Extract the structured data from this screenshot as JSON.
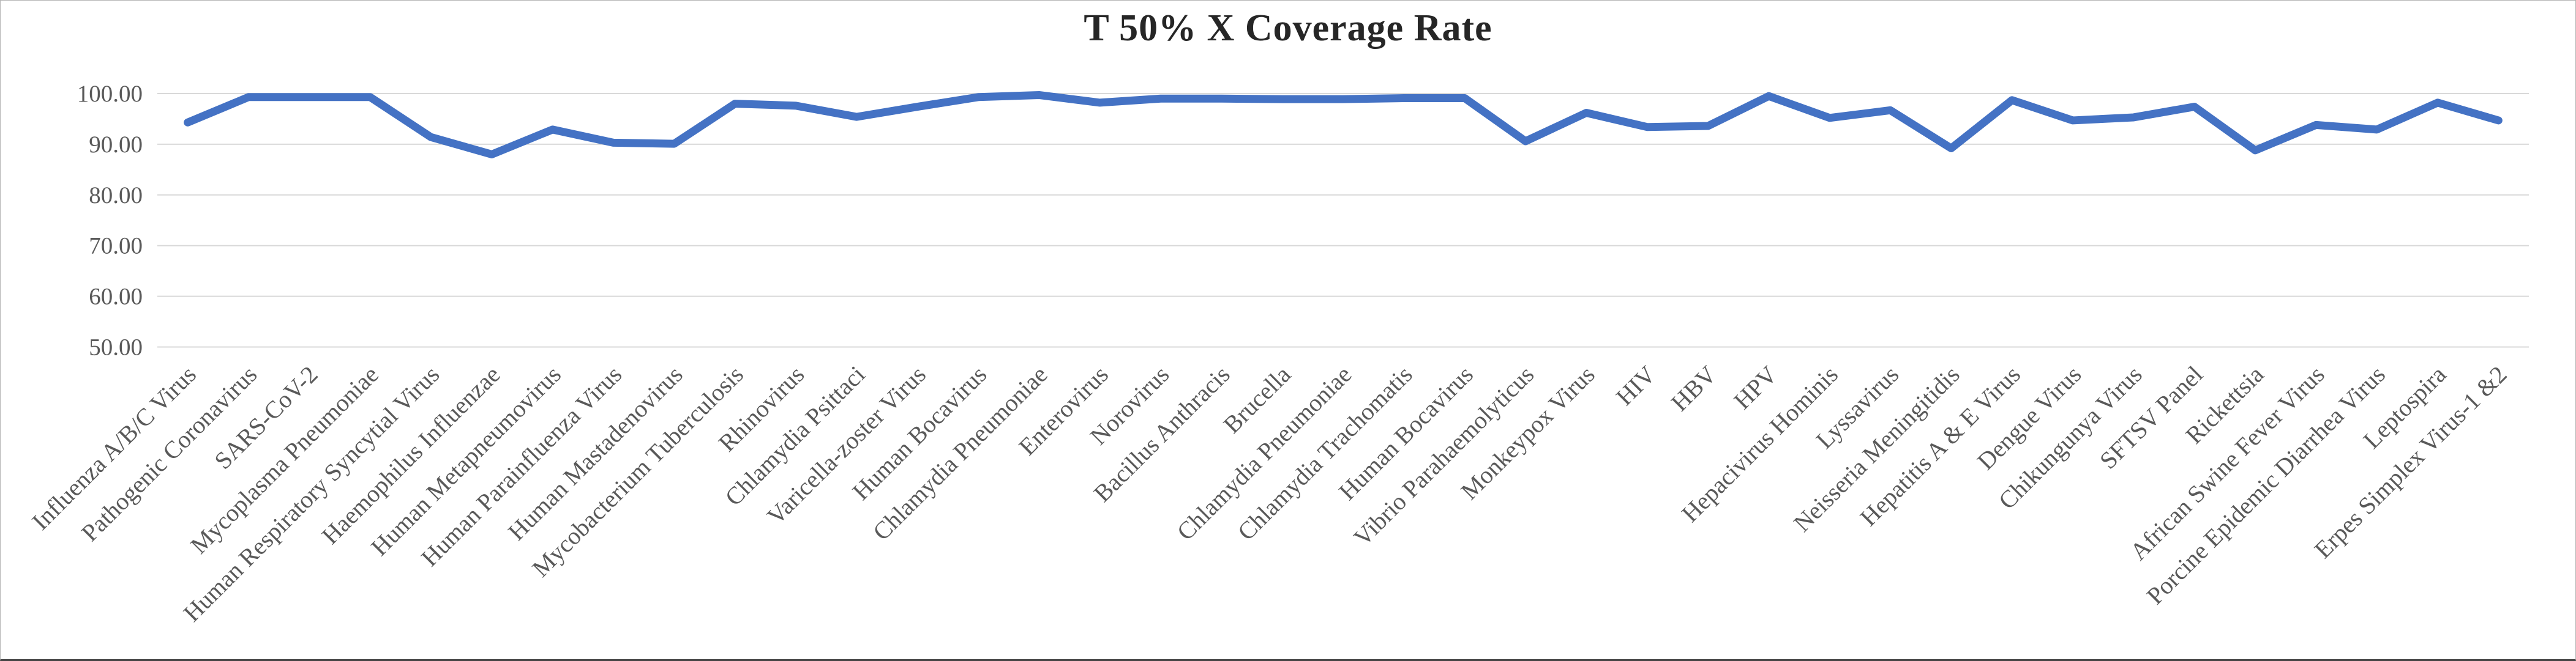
{
  "chart_data": {
    "type": "line",
    "title": "T 50% X Coverage Rate",
    "categories": [
      "Influenza A/B/C Virus",
      "Pathogenic Coronavirus",
      "SARS-CoV-2",
      "Mycoplasma Pneumoniae",
      "Human Respiratory Syncytial Virus",
      "Haemophilus Influenzae",
      "Human Metapneumovirus",
      "Human Parainfluenza Virus",
      "Human Mastadenovirus",
      "Mycobacterium Tuberculosis",
      "Rhinovirus",
      "Chlamydia Psittaci",
      "Varicella-zoster Virus",
      "Human Bocavirus",
      "Chlamydia Pneumoniae",
      "Enterovirus",
      "Norovirus",
      "Bacillus Anthracis",
      "Brucella",
      "Chlamydia Pneumoniae",
      "Chlamydia Trachomatis",
      "Human Bocavirus",
      "Vibrio Parahaemolyticus",
      "Monkeypox Virus",
      "HIV",
      "HBV",
      "HPV",
      "Hepacivirus Hominis",
      "Lyssavirus",
      "Neisseria Meningitidis",
      "Hepatitis A & E Virus",
      "Dengue Virus",
      "Chikungunya Virus",
      "SFTSV Panel",
      "Rickettsia",
      "African Swine Fever Virus",
      "Porcine Epidemic Diarrhea Virus",
      "Leptospira",
      "Erpes Simplex Virus-1 &2"
    ],
    "values": [
      94.3,
      99.3,
      99.3,
      99.3,
      91.4,
      88.0,
      92.9,
      90.3,
      90.1,
      98.0,
      97.6,
      95.4,
      97.4,
      99.3,
      99.7,
      98.2,
      99.0,
      99.0,
      98.9,
      98.9,
      99.1,
      99.1,
      90.6,
      96.2,
      93.4,
      93.6,
      99.5,
      95.2,
      96.7,
      89.2,
      98.7,
      94.7,
      95.3,
      97.4,
      88.8,
      93.8,
      92.9,
      98.2,
      94.7
    ],
    "xlabel": "",
    "ylabel": "",
    "ylim": [
      50,
      100
    ],
    "yticks": [
      "100.00",
      "90.00",
      "80.00",
      "70.00",
      "60.00",
      "50.00"
    ],
    "grid": "horizontal",
    "legend_position": "none",
    "line_color": "#4472C4",
    "grid_color": "#D9D9D9",
    "axis_text_color": "#595959",
    "title_color": "#262626"
  }
}
